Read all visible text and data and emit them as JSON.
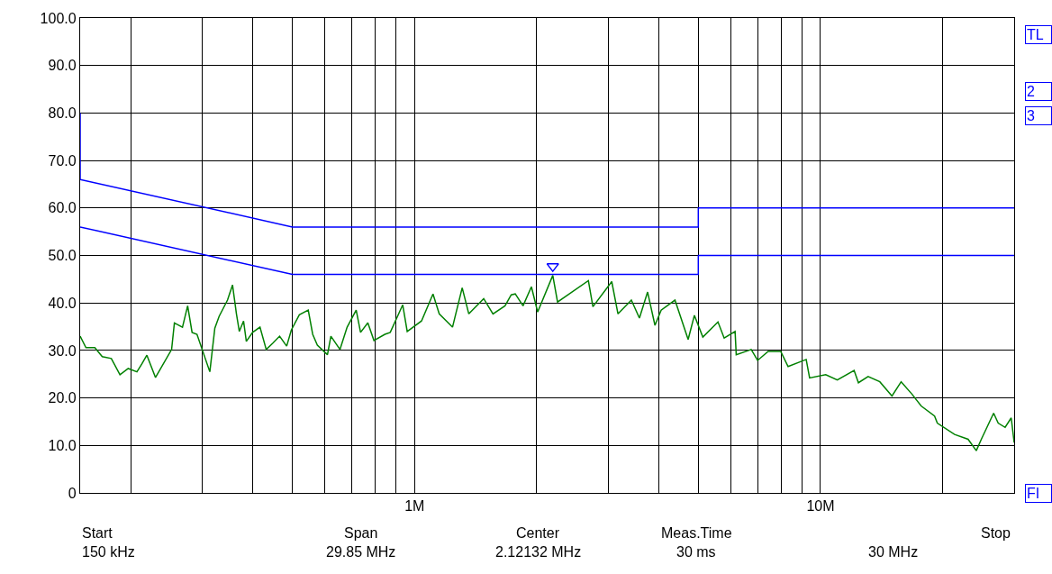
{
  "chart_data": {
    "type": "line",
    "log": "x",
    "grid": true,
    "xlim": [
      0.15,
      30
    ],
    "ylim": [
      0,
      100
    ],
    "xticks": [
      {
        "value": 0.2,
        "label": null
      },
      {
        "value": 0.3,
        "label": null
      },
      {
        "value": 0.4,
        "label": null
      },
      {
        "value": 0.5,
        "label": null
      },
      {
        "value": 0.6,
        "label": null
      },
      {
        "value": 0.7,
        "label": null
      },
      {
        "value": 0.8,
        "label": null
      },
      {
        "value": 0.9,
        "label": null
      },
      {
        "value": 1,
        "label": "1M"
      },
      {
        "value": 2,
        "label": null
      },
      {
        "value": 3,
        "label": null
      },
      {
        "value": 4,
        "label": null
      },
      {
        "value": 5,
        "label": null
      },
      {
        "value": 6,
        "label": null
      },
      {
        "value": 7,
        "label": null
      },
      {
        "value": 8,
        "label": null
      },
      {
        "value": 9,
        "label": null
      },
      {
        "value": 10,
        "label": "10M"
      },
      {
        "value": 20,
        "label": null
      }
    ],
    "yticks": [
      0,
      {
        "value": 10,
        "label": "10.0"
      },
      {
        "value": 20,
        "label": "20.0"
      },
      {
        "value": 30,
        "label": "30.0"
      },
      {
        "value": 40,
        "label": "40.0"
      },
      {
        "value": 50,
        "label": "50.0"
      },
      {
        "value": 60,
        "label": "60.0"
      },
      {
        "value": 70,
        "label": "70.0"
      },
      {
        "value": 80,
        "label": "80.0"
      },
      {
        "value": 90,
        "label": "90.0"
      },
      {
        "value": 100,
        "label": "100.0"
      }
    ],
    "series": [
      {
        "color": "#0000ff",
        "x": [
          0.15,
          0.15,
          0.5,
          5,
          5,
          30
        ],
        "values": [
          80,
          66,
          56,
          56,
          60,
          60
        ]
      },
      {
        "color": "#0000ff",
        "x": [
          0.15,
          0.5,
          5,
          5,
          30
        ],
        "values": [
          56,
          46,
          46,
          50,
          50
        ]
      },
      {
        "color": "#008000",
        "x": [
          0.15,
          0.155,
          0.163,
          0.17,
          0.179,
          0.188,
          0.197,
          0.207,
          0.213,
          0.219,
          0.23,
          0.252,
          0.256,
          0.268,
          0.276,
          0.283,
          0.291,
          0.313,
          0.322,
          0.33,
          0.346,
          0.356,
          0.364,
          0.37,
          0.379,
          0.385,
          0.399,
          0.416,
          0.431,
          0.447,
          0.465,
          0.484,
          0.497,
          0.52,
          0.547,
          0.561,
          0.576,
          0.61,
          0.622,
          0.655,
          0.682,
          0.718,
          0.736,
          0.767,
          0.794,
          0.845,
          0.871,
          0.935,
          0.959,
          1.04,
          1.11,
          1.15,
          1.24,
          1.31,
          1.36,
          1.48,
          1.56,
          1.67,
          1.73,
          1.77,
          1.85,
          1.94,
          2.01,
          2.19,
          2.25,
          2.68,
          2.75,
          3.06,
          3.17,
          3.42,
          3.58,
          3.75,
          3.91,
          4.05,
          4.38,
          4.72,
          4.89,
          5.13,
          5.59,
          5.79,
          6.16,
          6.2,
          6.75,
          7.0,
          7.43,
          7.98,
          8.32,
          9.22,
          9.4,
          10.3,
          11.0,
          12.1,
          12.4,
          13.1,
          14.0,
          15.0,
          15.8,
          16.8,
          17.7,
          19.1,
          19.4,
          21.4,
          23.1,
          24.2,
          24.9,
          26.7,
          27.4,
          28.5,
          29.5,
          30.0
        ],
        "values": [
          33.0,
          30.6,
          30.6,
          28.7,
          28.3,
          24.9,
          26.2,
          25.5,
          27.2,
          29.0,
          24.3,
          30.2,
          35.8,
          34.9,
          39.4,
          33.8,
          33.4,
          25.5,
          34.7,
          37.2,
          40.6,
          43.8,
          37.7,
          34.0,
          36.2,
          31.9,
          33.8,
          34.9,
          30.2,
          31.5,
          33.0,
          30.9,
          34.3,
          37.5,
          38.5,
          33.4,
          31.1,
          29.1,
          33.0,
          30.2,
          34.9,
          38.5,
          33.8,
          35.8,
          32.1,
          33.4,
          33.8,
          39.6,
          34.0,
          36.2,
          41.9,
          37.7,
          34.9,
          43.2,
          37.7,
          40.9,
          37.7,
          39.4,
          41.7,
          41.9,
          39.4,
          43.4,
          38.1,
          45.8,
          40.2,
          44.7,
          39.2,
          44.5,
          37.7,
          40.6,
          36.8,
          42.3,
          35.3,
          38.5,
          40.6,
          32.3,
          37.4,
          32.8,
          36.0,
          32.6,
          34.0,
          29.1,
          30.2,
          27.9,
          29.8,
          29.8,
          26.6,
          28.1,
          24.2,
          24.9,
          23.8,
          25.8,
          23.2,
          24.5,
          23.4,
          20.4,
          23.4,
          20.8,
          18.3,
          16.2,
          14.7,
          12.3,
          11.3,
          8.9,
          11.3,
          16.8,
          14.7,
          13.8,
          15.8,
          10.6
        ]
      },
      {
        "type": "scatter",
        "color": "#0000ff",
        "marker": "triangle",
        "x": [
          2.19
        ],
        "values": [
          47.7
        ]
      }
    ],
    "annotations": [
      "Start",
      "150 kHz",
      "Span",
      "29.85 MHz",
      "Center",
      "2.12132 MHz",
      "Meas.Time",
      "30 ms",
      "Stop",
      "30 MHz",
      "TL",
      "2",
      "3",
      "FI"
    ]
  }
}
